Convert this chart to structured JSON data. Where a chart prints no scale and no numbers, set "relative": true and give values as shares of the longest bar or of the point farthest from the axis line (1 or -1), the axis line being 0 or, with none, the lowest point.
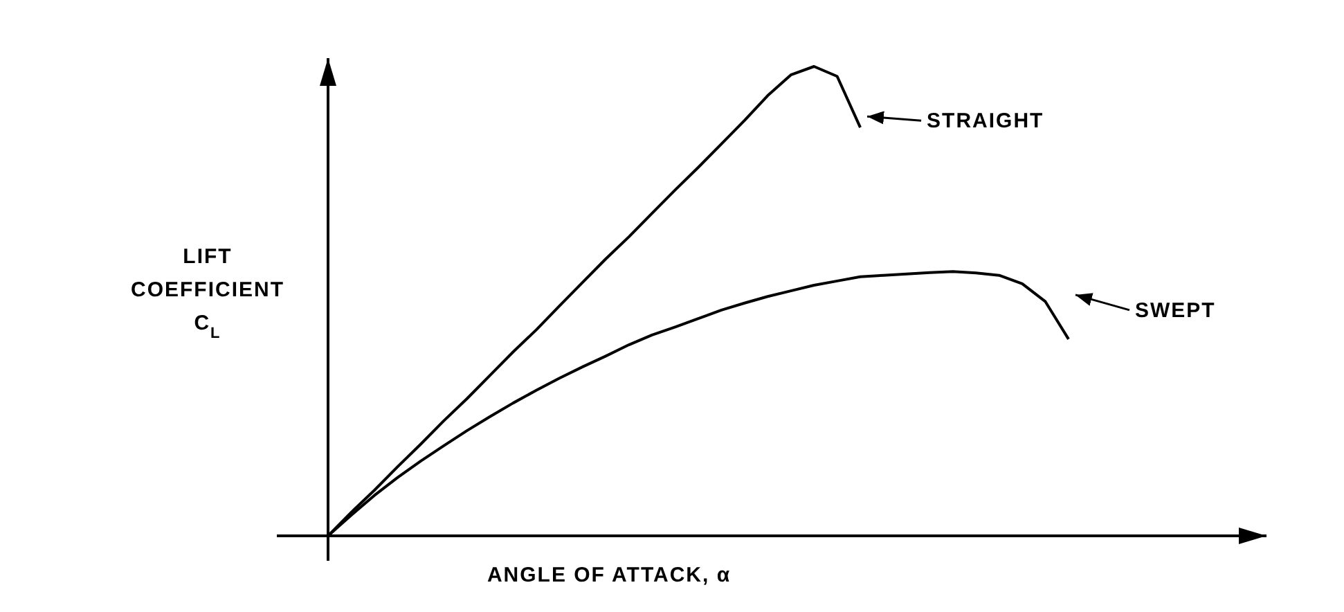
{
  "chart_data": {
    "type": "line",
    "relative": true,
    "legend": "right",
    "xlabel": "ANGLE OF ATTACK, α",
    "ylabel": "LIFT COEFFICIENT C$_{L}$",
    "categories": [
      null,
      null,
      null,
      null,
      null,
      null,
      null,
      null,
      null,
      null,
      null,
      null,
      null,
      null,
      null,
      null,
      null,
      null,
      null,
      null,
      null,
      null,
      null,
      null,
      null,
      null,
      null,
      null,
      null,
      null,
      null,
      null,
      null
    ],
    "series": [
      {
        "name": "STRAIGHT",
        "color": "#000000",
        "values": [
          0,
          0.05,
          0.097,
          0.147,
          0.195,
          0.245,
          0.292,
          0.342,
          0.392,
          0.439,
          0.49,
          0.54,
          0.59,
          0.637,
          0.687,
          0.737,
          0.785,
          0.835,
          0.885,
          0.938,
          0.982,
          1,
          0.979,
          0.87,
          null,
          null,
          null,
          null,
          null,
          null,
          null,
          null,
          null
        ]
      },
      {
        "name": "SWEPT",
        "color": "#000000",
        "values": [
          0,
          0.044,
          0.086,
          0.124,
          0.159,
          0.192,
          0.224,
          0.254,
          0.283,
          0.31,
          0.336,
          0.36,
          0.383,
          0.407,
          0.428,
          0.445,
          0.463,
          0.481,
          0.496,
          0.51,
          0.522,
          0.534,
          0.543,
          0.552,
          0.555,
          0.558,
          0.561,
          0.563,
          0.56,
          0.555,
          0.537,
          0.499,
          0.419
        ]
      }
    ]
  }
}
